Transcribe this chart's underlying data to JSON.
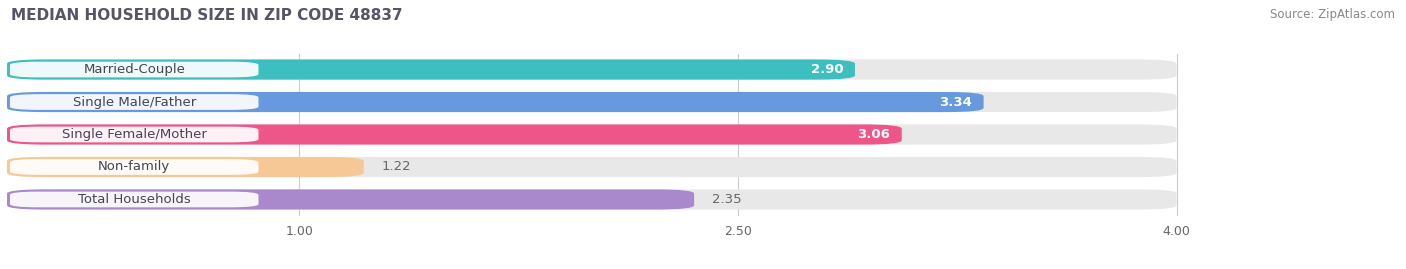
{
  "title": "MEDIAN HOUSEHOLD SIZE IN ZIP CODE 48837",
  "source": "Source: ZipAtlas.com",
  "categories": [
    "Married-Couple",
    "Single Male/Father",
    "Single Female/Mother",
    "Non-family",
    "Total Households"
  ],
  "values": [
    2.9,
    3.34,
    3.06,
    1.22,
    2.35
  ],
  "bar_colors": [
    "#3DBFBF",
    "#6699DD",
    "#EE5588",
    "#F5C895",
    "#AA88CC"
  ],
  "track_color": "#e8e8e8",
  "xlim_min": 0.0,
  "xlim_max": 4.4,
  "data_min": 0.0,
  "data_max": 4.0,
  "xticks": [
    1.0,
    2.5,
    4.0
  ],
  "bar_height": 0.62,
  "background_color": "#ffffff",
  "label_fontsize": 9.5,
  "value_fontsize": 9.5,
  "title_fontsize": 11,
  "title_color": "#555566",
  "source_fontsize": 8.5
}
